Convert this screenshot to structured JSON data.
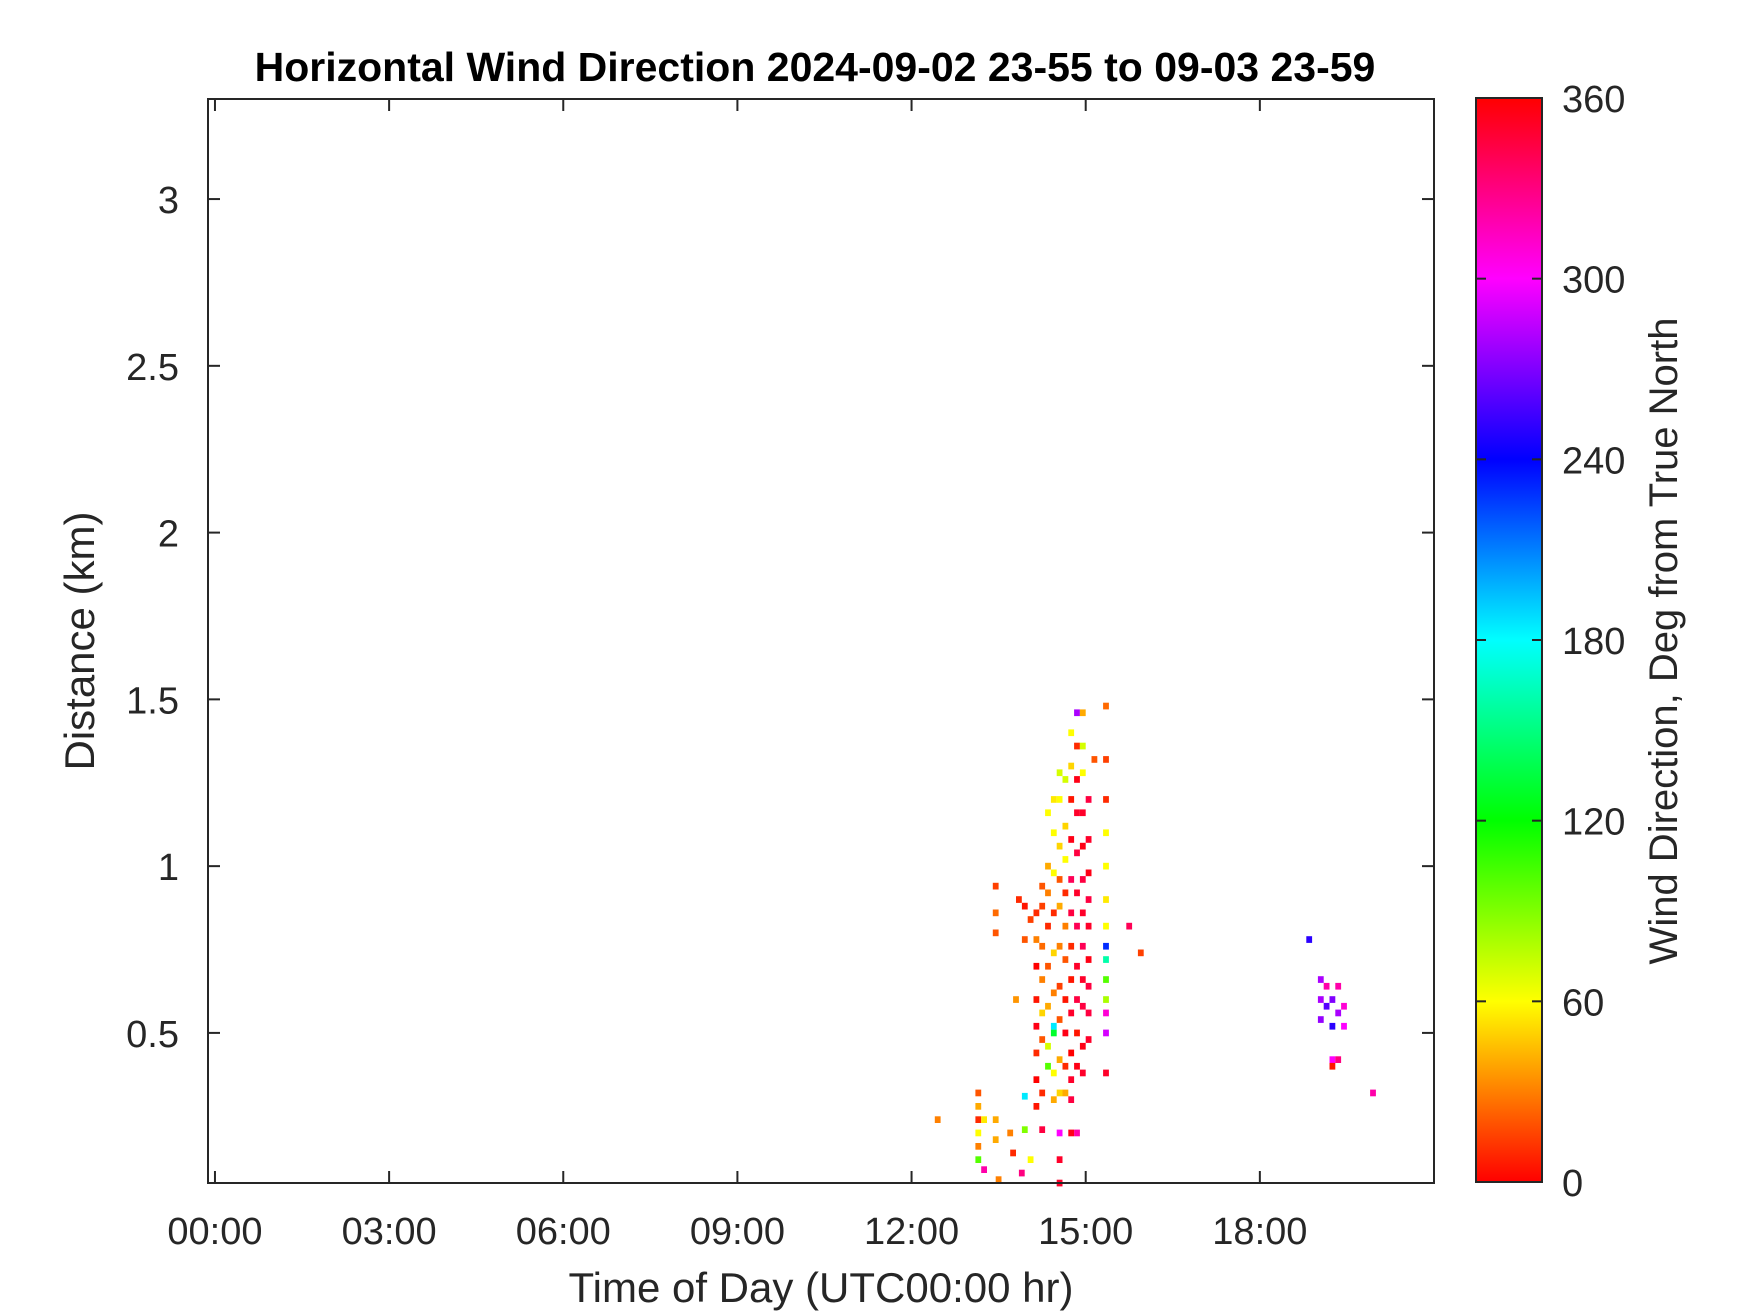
{
  "chart_data": {
    "type": "heatmap",
    "title": "Horizontal Wind Direction 2024-09-02 23-55 to 09-03 23-59",
    "xlabel": "Time of Day (UTC00:00 hr)",
    "ylabel": "Distance (km)",
    "xlim": [
      -0.12,
      21.0
    ],
    "ylim": [
      0.05,
      3.3
    ],
    "x_ticks": [
      0,
      3,
      6,
      9,
      12,
      15,
      18
    ],
    "x_tick_labels": [
      "00:00",
      "03:00",
      "06:00",
      "09:00",
      "12:00",
      "15:00",
      "18:00"
    ],
    "y_ticks": [
      0.5,
      1,
      1.5,
      2,
      2.5,
      3
    ],
    "y_tick_labels": [
      "0.5",
      "1",
      "1.5",
      "2",
      "2.5",
      "3"
    ],
    "colorbar": {
      "label": "Wind Direction, Deg from True North",
      "range": [
        0,
        360
      ],
      "ticks": [
        0,
        60,
        120,
        180,
        240,
        300,
        360
      ],
      "tick_labels": [
        "0",
        "60",
        "120",
        "180",
        "240",
        "300",
        "360"
      ],
      "colormap": "hsv"
    },
    "cell_size": {
      "x_hr": 0.1,
      "y_km": 0.02
    },
    "grid": false,
    "points": [
      [
        12.45,
        0.24,
        30
      ],
      [
        13.15,
        0.32,
        20
      ],
      [
        13.15,
        0.28,
        40
      ],
      [
        13.15,
        0.24,
        10
      ],
      [
        13.15,
        0.2,
        60
      ],
      [
        13.15,
        0.16,
        30
      ],
      [
        13.15,
        0.12,
        100
      ],
      [
        13.25,
        0.09,
        320
      ],
      [
        13.25,
        0.24,
        55
      ],
      [
        13.45,
        0.94,
        15
      ],
      [
        13.45,
        0.86,
        25
      ],
      [
        13.45,
        0.8,
        20
      ],
      [
        13.45,
        0.24,
        40
      ],
      [
        13.45,
        0.18,
        40
      ],
      [
        13.5,
        0.06,
        30
      ],
      [
        13.7,
        0.2,
        30
      ],
      [
        13.75,
        0.14,
        10
      ],
      [
        13.8,
        0.6,
        35
      ],
      [
        13.9,
        0.08,
        330
      ],
      [
        13.95,
        0.21,
        90
      ],
      [
        13.95,
        0.31,
        185
      ],
      [
        14.05,
        0.12,
        60
      ],
      [
        13.85,
        0.9,
        10
      ],
      [
        13.95,
        0.88,
        5
      ],
      [
        14.05,
        0.84,
        15
      ],
      [
        14.15,
        0.86,
        10
      ],
      [
        14.15,
        0.78,
        30
      ],
      [
        13.95,
        0.78,
        20
      ],
      [
        14.15,
        0.28,
        5
      ],
      [
        14.15,
        0.36,
        0
      ],
      [
        14.15,
        0.44,
        10
      ],
      [
        14.15,
        0.52,
        355
      ],
      [
        14.15,
        0.6,
        5
      ],
      [
        14.15,
        0.7,
        0
      ],
      [
        14.25,
        0.32,
        10
      ],
      [
        14.25,
        0.48,
        20
      ],
      [
        14.25,
        0.56,
        50
      ],
      [
        14.25,
        0.66,
        30
      ],
      [
        14.25,
        0.76,
        25
      ],
      [
        14.25,
        0.88,
        15
      ],
      [
        14.25,
        0.94,
        20
      ],
      [
        14.25,
        0.21,
        345
      ],
      [
        14.35,
        0.46,
        70
      ],
      [
        14.35,
        0.58,
        40
      ],
      [
        14.35,
        0.7,
        20
      ],
      [
        14.35,
        0.82,
        10
      ],
      [
        14.35,
        0.92,
        30
      ],
      [
        14.35,
        1.0,
        40
      ],
      [
        14.35,
        1.16,
        60
      ],
      [
        14.35,
        0.4,
        100
      ],
      [
        14.45,
        0.38,
        60
      ],
      [
        14.45,
        0.5,
        130
      ],
      [
        14.45,
        0.62,
        30
      ],
      [
        14.45,
        0.74,
        50
      ],
      [
        14.45,
        0.86,
        10
      ],
      [
        14.45,
        0.98,
        60
      ],
      [
        14.45,
        1.1,
        60
      ],
      [
        14.45,
        1.2,
        55
      ],
      [
        14.45,
        0.3,
        40
      ],
      [
        14.45,
        0.52,
        185
      ],
      [
        14.55,
        0.32,
        50
      ],
      [
        14.55,
        0.42,
        40
      ],
      [
        14.55,
        0.54,
        20
      ],
      [
        14.55,
        0.64,
        15
      ],
      [
        14.55,
        0.76,
        30
      ],
      [
        14.55,
        0.88,
        40
      ],
      [
        14.55,
        0.96,
        20
      ],
      [
        14.55,
        1.06,
        50
      ],
      [
        14.55,
        1.2,
        60
      ],
      [
        14.55,
        1.28,
        70
      ],
      [
        14.55,
        0.2,
        300
      ],
      [
        14.55,
        0.12,
        350
      ],
      [
        14.55,
        0.05,
        350
      ],
      [
        14.65,
        0.32,
        40
      ],
      [
        14.65,
        0.4,
        10
      ],
      [
        14.65,
        0.5,
        355
      ],
      [
        14.65,
        0.6,
        5
      ],
      [
        14.65,
        0.72,
        20
      ],
      [
        14.65,
        0.82,
        30
      ],
      [
        14.65,
        0.92,
        10
      ],
      [
        14.65,
        1.02,
        60
      ],
      [
        14.65,
        1.12,
        50
      ],
      [
        14.65,
        1.26,
        70
      ],
      [
        14.75,
        0.36,
        350
      ],
      [
        14.75,
        0.44,
        0
      ],
      [
        14.75,
        0.56,
        350
      ],
      [
        14.75,
        0.66,
        5
      ],
      [
        14.75,
        0.76,
        10
      ],
      [
        14.75,
        0.86,
        345
      ],
      [
        14.75,
        0.96,
        340
      ],
      [
        14.75,
        1.08,
        355
      ],
      [
        14.75,
        1.2,
        5
      ],
      [
        14.75,
        1.3,
        50
      ],
      [
        14.75,
        1.4,
        60
      ],
      [
        14.75,
        0.2,
        355
      ],
      [
        14.75,
        0.3,
        345
      ],
      [
        14.85,
        0.4,
        355
      ],
      [
        14.85,
        0.5,
        5
      ],
      [
        14.85,
        0.6,
        345
      ],
      [
        14.85,
        0.7,
        350
      ],
      [
        14.85,
        0.82,
        340
      ],
      [
        14.85,
        0.92,
        350
      ],
      [
        14.85,
        1.04,
        345
      ],
      [
        14.85,
        1.16,
        350
      ],
      [
        14.85,
        1.26,
        355
      ],
      [
        14.85,
        1.36,
        10
      ],
      [
        14.85,
        1.46,
        280
      ],
      [
        14.85,
        0.2,
        320
      ],
      [
        14.95,
        0.38,
        350
      ],
      [
        14.95,
        0.46,
        355
      ],
      [
        14.95,
        0.58,
        345
      ],
      [
        14.95,
        0.66,
        350
      ],
      [
        14.95,
        0.76,
        340
      ],
      [
        14.95,
        0.86,
        350
      ],
      [
        14.95,
        0.96,
        345
      ],
      [
        14.95,
        1.06,
        355
      ],
      [
        14.95,
        1.16,
        350
      ],
      [
        14.95,
        1.28,
        60
      ],
      [
        14.95,
        1.36,
        70
      ],
      [
        14.95,
        1.46,
        40
      ],
      [
        15.05,
        0.48,
        350
      ],
      [
        15.05,
        0.56,
        345
      ],
      [
        15.05,
        0.64,
        345
      ],
      [
        15.05,
        0.72,
        355
      ],
      [
        15.05,
        0.82,
        350
      ],
      [
        15.05,
        0.9,
        345
      ],
      [
        15.05,
        0.98,
        355
      ],
      [
        15.05,
        1.08,
        350
      ],
      [
        15.05,
        1.2,
        345
      ],
      [
        15.15,
        1.32,
        20
      ],
      [
        15.35,
        0.38,
        350
      ],
      [
        15.35,
        0.5,
        290
      ],
      [
        15.35,
        0.56,
        310
      ],
      [
        15.35,
        0.6,
        80
      ],
      [
        15.35,
        0.66,
        100
      ],
      [
        15.35,
        0.72,
        160
      ],
      [
        15.35,
        0.76,
        230
      ],
      [
        15.35,
        0.82,
        60
      ],
      [
        15.35,
        0.9,
        55
      ],
      [
        15.35,
        1.0,
        60
      ],
      [
        15.35,
        1.1,
        60
      ],
      [
        15.35,
        1.2,
        10
      ],
      [
        15.35,
        1.32,
        15
      ],
      [
        15.35,
        1.48,
        25
      ],
      [
        15.75,
        0.82,
        340
      ],
      [
        15.95,
        0.74,
        15
      ],
      [
        18.85,
        0.78,
        250
      ],
      [
        19.05,
        0.54,
        275
      ],
      [
        19.05,
        0.6,
        280
      ],
      [
        19.05,
        0.66,
        280
      ],
      [
        19.15,
        0.58,
        260
      ],
      [
        19.15,
        0.64,
        320
      ],
      [
        19.25,
        0.52,
        250
      ],
      [
        19.25,
        0.6,
        270
      ],
      [
        19.25,
        0.42,
        300
      ],
      [
        19.25,
        0.4,
        5
      ],
      [
        19.35,
        0.56,
        280
      ],
      [
        19.35,
        0.64,
        320
      ],
      [
        19.35,
        0.42,
        330
      ],
      [
        19.45,
        0.52,
        300
      ],
      [
        19.45,
        0.58,
        310
      ],
      [
        19.95,
        0.32,
        320
      ]
    ]
  }
}
